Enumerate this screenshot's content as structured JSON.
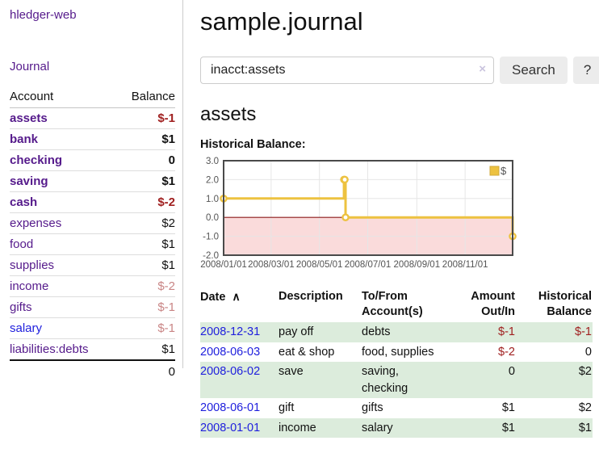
{
  "app": {
    "brand": "hledger-web",
    "nav_journal": "Journal"
  },
  "sidebar": {
    "col_account": "Account",
    "col_balance": "Balance",
    "accounts": [
      {
        "name": "assets",
        "depth": 1,
        "bold": true,
        "balance": "$-1",
        "neg": "strong"
      },
      {
        "name": "bank",
        "depth": 2,
        "bold": true,
        "balance": "$1",
        "neg": "none"
      },
      {
        "name": "checking",
        "depth": 3,
        "bold": true,
        "balance": "0",
        "neg": "none"
      },
      {
        "name": "saving",
        "depth": 3,
        "bold": true,
        "balance": "$1",
        "neg": "none"
      },
      {
        "name": "cash",
        "depth": 2,
        "bold": true,
        "balance": "$-2",
        "neg": "strong"
      },
      {
        "name": "expenses",
        "depth": 1,
        "bold": false,
        "balance": "$2",
        "neg": "none"
      },
      {
        "name": "food",
        "depth": 2,
        "bold": false,
        "balance": "$1",
        "neg": "none"
      },
      {
        "name": "supplies",
        "depth": 2,
        "bold": false,
        "balance": "$1",
        "neg": "none"
      },
      {
        "name": "income",
        "depth": 1,
        "bold": false,
        "balance": "$-2",
        "neg": "soft"
      },
      {
        "name": "gifts",
        "depth": 2,
        "bold": false,
        "balance": "$-1",
        "neg": "soft"
      },
      {
        "name": "salary",
        "depth": 2,
        "bold": false,
        "balance": "$-1",
        "neg": "soft",
        "link_color": "blue"
      },
      {
        "name": "liabilities:debts",
        "depth": 1,
        "bold": false,
        "balance": "$1",
        "neg": "none"
      }
    ],
    "total": "0"
  },
  "header": {
    "title": "sample.journal"
  },
  "search": {
    "value": "inacct:assets",
    "clear_icon": "×",
    "button": "Search",
    "help_button": "?"
  },
  "account_page": {
    "heading": "assets",
    "chart_label": "Historical Balance:"
  },
  "chart_data": {
    "type": "line",
    "step": true,
    "title": "Historical Balance:",
    "series": [
      {
        "name": "$",
        "color": "#edc240",
        "points": [
          [
            "2008-01-01",
            1
          ],
          [
            "2008-06-01",
            2
          ],
          [
            "2008-06-02",
            2
          ],
          [
            "2008-06-03",
            0
          ],
          [
            "2008-12-31",
            -1
          ]
        ]
      }
    ],
    "point_days": [
      0,
      152,
      153,
      154,
      365
    ],
    "x_ticks": [
      "2008/01/01",
      "2008/03/01",
      "2008/05/01",
      "2008/07/01",
      "2008/09/01",
      "2008/11/01"
    ],
    "tick_days": [
      0,
      60,
      121,
      182,
      244,
      305
    ],
    "y_ticks": [
      3.0,
      2.0,
      1.0,
      0.0,
      -1.0,
      -2.0
    ],
    "ylim": [
      -2,
      3
    ],
    "xlim_days": [
      0,
      365
    ],
    "grid": true,
    "negative_region_fill": "#fadbdb",
    "zero_line_color": "#8b1a1a",
    "legend": {
      "label": "$",
      "position": "top-right"
    }
  },
  "register": {
    "columns": {
      "date": "Date",
      "sort_indicator": "∧",
      "description": "Description",
      "accounts_line1": "To/From",
      "accounts_line2": "Account(s)",
      "amount_line1": "Amount",
      "amount_line2": "Out/In",
      "balance_line1": "Historical",
      "balance_line2": "Balance"
    },
    "rows": [
      {
        "date": "2008-12-31",
        "description": "pay off",
        "accounts": "debts",
        "amount": "$-1",
        "amount_neg": true,
        "balance": "$-1",
        "balance_neg": true
      },
      {
        "date": "2008-06-03",
        "description": "eat & shop",
        "accounts": "food, supplies",
        "amount": "$-2",
        "amount_neg": true,
        "balance": "0",
        "balance_neg": false
      },
      {
        "date": "2008-06-02",
        "description": "save",
        "accounts": "saving,\nchecking",
        "amount": "0",
        "amount_neg": false,
        "balance": "$2",
        "balance_neg": false
      },
      {
        "date": "2008-06-01",
        "description": "gift",
        "accounts": "gifts",
        "amount": "$1",
        "amount_neg": false,
        "balance": "$2",
        "balance_neg": false
      },
      {
        "date": "2008-01-01",
        "description": "income",
        "accounts": "salary",
        "amount": "$1",
        "amount_neg": false,
        "balance": "$1",
        "balance_neg": false
      }
    ]
  },
  "colors": {
    "purple": "#551a8b",
    "blue": "#2020dd",
    "neg_strong": "#a02020",
    "neg_soft": "#c98585",
    "row_green": "#dcecdc",
    "gold": "#edc240",
    "pink": "#fadbdb",
    "zero_line": "#8b1a1a",
    "grid": "#e6e6e6",
    "chart_border": "#4a4a4a",
    "tick_text": "#545454",
    "button_bg": "#ececec"
  }
}
